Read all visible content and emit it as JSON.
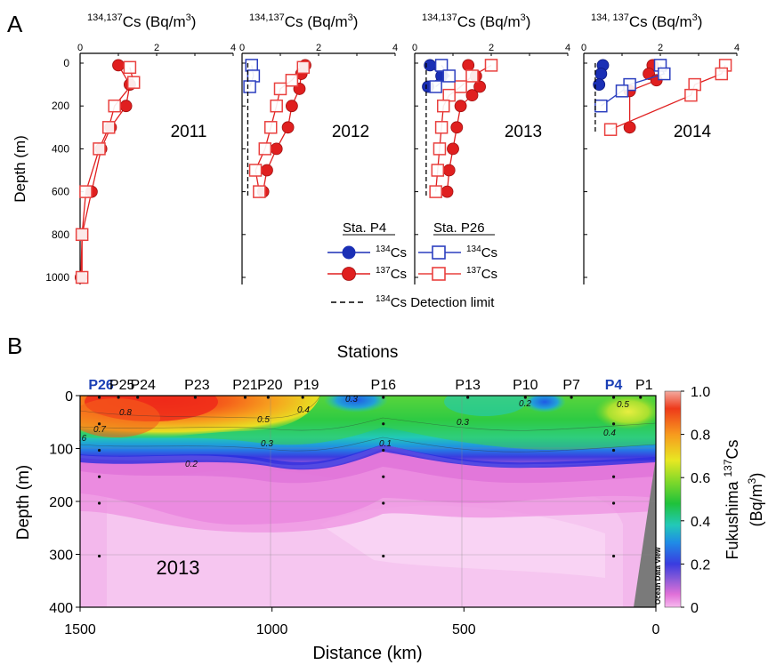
{
  "panel_labels": {
    "a": "A",
    "b": "B"
  },
  "panel_a": {
    "top_axis_label_prefix": "134,137",
    "top_axis_label_text": "Cs (Bq/m",
    "top_axis_label_exp": "3",
    "top_axis_label_close": ")",
    "last_top_axis_label_prefix": "134, 137",
    "ylabel": "Depth (m)",
    "xticks": [
      "0",
      "2",
      "4"
    ],
    "yticks": [
      "0",
      "200",
      "400",
      "600",
      "800",
      "1000"
    ],
    "legend": {
      "header_p4": "Sta. P4",
      "header_p26": "Sta. P26",
      "cs134_sup": "134",
      "cs137_sup": "137",
      "cs_text": "Cs",
      "detection_sup": "134",
      "detection_text": "Cs Detection limit"
    }
  },
  "panel_b": {
    "title": "Stations",
    "year": "2013",
    "ylabel": "Depth (m)",
    "xlabel": "Distance (km)",
    "xticks": [
      "1500",
      "1000",
      "500",
      "0"
    ],
    "yticks": [
      "0",
      "100",
      "200",
      "300",
      "400"
    ],
    "stations": [
      {
        "name": "P26",
        "color": "#1a3fb5"
      },
      {
        "name": "P25",
        "color": "#000000"
      },
      {
        "name": "P24",
        "color": "#000000"
      },
      {
        "name": "P23",
        "color": "#000000"
      },
      {
        "name": "P21",
        "color": "#000000"
      },
      {
        "name": "P20",
        "color": "#000000"
      },
      {
        "name": "P19",
        "color": "#000000"
      },
      {
        "name": "P16",
        "color": "#000000"
      },
      {
        "name": "P13",
        "color": "#000000"
      },
      {
        "name": "P10",
        "color": "#000000"
      },
      {
        "name": "P7",
        "color": "#000000"
      },
      {
        "name": "P4",
        "color": "#1a3fb5"
      },
      {
        "name": "P1",
        "color": "#000000"
      }
    ],
    "contour_labels": [
      "0.8",
      "0.7",
      ".6",
      "0.5",
      "0.4",
      "0.3",
      "0.2",
      "0.2",
      "0.1",
      "0.3",
      "0.3",
      "0.5",
      "0.4"
    ],
    "colorbar": {
      "label_prefix": "Fukushima ",
      "label_sup": "137",
      "label_main": "Cs",
      "label_unit_open": "(Bq/m",
      "label_unit_exp": "3",
      "label_unit_close": ")",
      "ticks": [
        "1.0",
        "0.8",
        "0.6",
        "0.4",
        "0.2",
        "0"
      ]
    },
    "watermark": "Ocean Data View"
  },
  "chart_data": [
    {
      "type": "scatter",
      "title": "2011",
      "xlabel": "134,137Cs (Bq/m3)",
      "ylabel": "Depth (m)",
      "xlim": [
        0,
        4
      ],
      "ylim": [
        1000,
        0
      ],
      "series": [
        {
          "name": "137Cs Sta. P4",
          "color": "#e01f1f",
          "marker": "filled-circle",
          "x": [
            1.0,
            1.3,
            1.2,
            0.8,
            0.55,
            0.3,
            0.05,
            0.02
          ],
          "y": [
            10,
            100,
            200,
            300,
            400,
            600,
            800,
            1000
          ]
        },
        {
          "name": "137Cs Sta. P26",
          "color": "#e01f1f",
          "marker": "open-square",
          "x": [
            1.3,
            1.4,
            0.9,
            0.75,
            0.5,
            0.15,
            0.05,
            0.05
          ],
          "y": [
            20,
            90,
            200,
            300,
            400,
            600,
            800,
            1000
          ]
        }
      ]
    },
    {
      "type": "scatter",
      "title": "2012",
      "xlabel": "134,137Cs (Bq/m3)",
      "ylabel": "Depth (m)",
      "xlim": [
        0,
        4
      ],
      "ylim": [
        1000,
        0
      ],
      "series": [
        {
          "name": "137Cs Sta. P4",
          "color": "#e01f1f",
          "marker": "filled-circle",
          "x": [
            1.65,
            1.55,
            1.5,
            1.3,
            1.2,
            0.9,
            0.65,
            0.55
          ],
          "y": [
            10,
            50,
            120,
            200,
            300,
            400,
            500,
            600
          ]
        },
        {
          "name": "137Cs Sta. P26",
          "color": "#e01f1f",
          "marker": "open-square",
          "x": [
            1.6,
            1.3,
            1.0,
            0.9,
            0.75,
            0.6,
            0.35,
            0.45
          ],
          "y": [
            20,
            80,
            120,
            200,
            300,
            400,
            500,
            600
          ]
        },
        {
          "name": "134Cs Sta. P26",
          "color": "#2c3fbf",
          "marker": "open-square",
          "x": [
            0.25,
            0.3,
            0.2
          ],
          "y": [
            10,
            60,
            110
          ]
        },
        {
          "name": "134Cs Detection limit",
          "color": "#000000",
          "marker": "dashed-line",
          "x": [
            0.15,
            0.15
          ],
          "y": [
            0,
            620
          ]
        }
      ]
    },
    {
      "type": "scatter",
      "title": "2013",
      "xlabel": "134,137Cs (Bq/m3)",
      "ylabel": "Depth (m)",
      "xlim": [
        0,
        4
      ],
      "ylim": [
        1000,
        0
      ],
      "series": [
        {
          "name": "134Cs Sta. P4",
          "color": "#1a2fb5",
          "marker": "filled-circle",
          "x": [
            0.4,
            0.7,
            0.35
          ],
          "y": [
            10,
            60,
            110
          ]
        },
        {
          "name": "137Cs Sta. P4",
          "color": "#e01f1f",
          "marker": "filled-circle",
          "x": [
            1.4,
            1.6,
            1.7,
            1.5,
            1.2,
            1.1,
            1.0,
            0.9,
            0.85
          ],
          "y": [
            10,
            60,
            110,
            150,
            200,
            300,
            400,
            500,
            600
          ]
        },
        {
          "name": "137Cs Sta. P26",
          "color": "#e01f1f",
          "marker": "open-square",
          "x": [
            2.0,
            1.5,
            1.2,
            0.9,
            0.75,
            0.7,
            0.65,
            0.6,
            0.55
          ],
          "y": [
            10,
            60,
            110,
            150,
            200,
            300,
            400,
            500,
            600
          ]
        },
        {
          "name": "134Cs Sta. P26",
          "color": "#2c3fbf",
          "marker": "open-square",
          "x": [
            0.7,
            0.9,
            0.55
          ],
          "y": [
            10,
            60,
            110
          ]
        },
        {
          "name": "134Cs Detection limit",
          "color": "#000000",
          "marker": "dashed-line",
          "x": [
            0.3,
            0.3
          ],
          "y": [
            0,
            620
          ]
        }
      ]
    },
    {
      "type": "scatter",
      "title": "2014",
      "xlabel": "134, 137Cs (Bq/m3)",
      "ylabel": "Depth (m)",
      "xlim": [
        0,
        4
      ],
      "ylim": [
        1000,
        0
      ],
      "series": [
        {
          "name": "134Cs Sta. P4",
          "color": "#1a2fb5",
          "marker": "filled-circle",
          "x": [
            0.5,
            0.45,
            0.4
          ],
          "y": [
            10,
            50,
            100
          ]
        },
        {
          "name": "137Cs Sta. P4",
          "color": "#e01f1f",
          "marker": "filled-circle",
          "x": [
            1.8,
            1.7,
            1.9,
            1.2,
            1.2
          ],
          "y": [
            10,
            50,
            80,
            130,
            300
          ]
        },
        {
          "name": "137Cs Sta. P26",
          "color": "#e01f1f",
          "marker": "open-square",
          "x": [
            3.7,
            3.6,
            2.9,
            2.8,
            0.7
          ],
          "y": [
            10,
            50,
            100,
            150,
            310
          ]
        },
        {
          "name": "134Cs Sta. P26",
          "color": "#2c3fbf",
          "marker": "open-square",
          "x": [
            2.0,
            2.1,
            1.2,
            1.0,
            0.45
          ],
          "y": [
            10,
            50,
            100,
            130,
            200
          ]
        },
        {
          "name": "134Cs Detection limit",
          "color": "#000000",
          "marker": "dashed-line",
          "x": [
            0.3,
            0.3
          ],
          "y": [
            0,
            320
          ]
        }
      ]
    },
    {
      "type": "heatmap",
      "title": "2013",
      "xlabel": "Distance (km)",
      "ylabel": "Depth (m)",
      "xlim": [
        1500,
        0
      ],
      "ylim": [
        400,
        0
      ],
      "colorbar_label": "Fukushima 137Cs (Bq/m3)",
      "colorbar_range": [
        0,
        1.0
      ],
      "station_distances": [
        1450,
        1400,
        1350,
        1200,
        1070,
        1010,
        920,
        710,
        490,
        340,
        220,
        110,
        40
      ],
      "contour_levels": [
        0.8,
        0.7,
        0.6,
        0.5,
        0.4,
        0.3,
        0.2,
        0.1
      ]
    }
  ]
}
